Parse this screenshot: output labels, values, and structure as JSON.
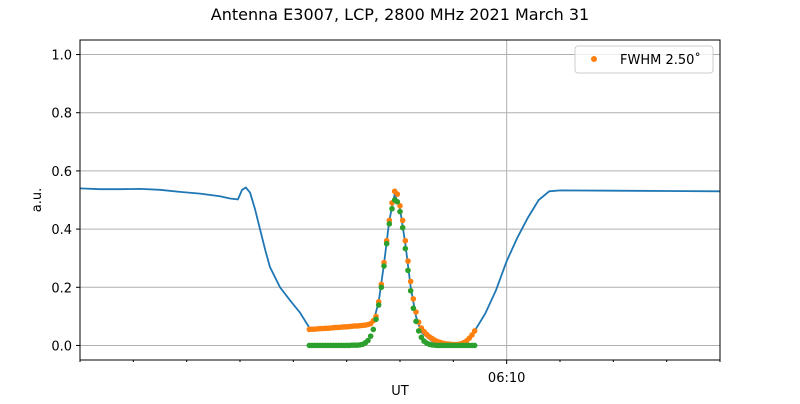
{
  "chart_data": {
    "type": "line",
    "title": "Antenna E3007, LCP, 2800 MHz 2021 March 31",
    "xlabel": "UT",
    "ylabel": "a.u.",
    "x_units": "minutes after 06:00",
    "xlim": [
      2,
      14
    ],
    "ylim": [
      -0.05,
      1.05
    ],
    "yticks": [
      "0.0",
      "0.2",
      "0.4",
      "0.6",
      "0.8",
      "1.0"
    ],
    "ytick_values": [
      0,
      0.2,
      0.4,
      0.6,
      0.8,
      1.0
    ],
    "xticks": [
      {
        "value": 10,
        "label": "06:10"
      }
    ],
    "xminor_ticks": [
      2,
      3,
      4,
      5,
      6,
      7,
      8,
      9,
      11,
      12,
      13,
      14
    ],
    "grid": true,
    "legend": {
      "placement": "top-right",
      "entries": [
        {
          "label": "FWHM 2.50$^\\circ$",
          "display": "FWHM 2.50˚",
          "series": "orange"
        }
      ]
    },
    "colors": {
      "blue": "#1f77b4",
      "orange": "#ff7f0e",
      "green": "#2ca02c"
    },
    "series": [
      {
        "name": "blue",
        "kind": "line",
        "x": [
          2.0,
          2.375,
          2.75,
          3.125,
          3.5,
          3.875,
          4.25,
          4.625,
          4.81,
          4.96,
          5.04,
          5.11,
          5.19,
          5.28,
          5.375,
          5.47,
          5.56,
          5.75,
          5.94,
          6.125,
          6.31,
          7.3,
          7.5,
          7.6,
          7.7,
          7.8,
          7.9,
          8.0,
          8.1,
          8.2,
          8.3,
          8.4,
          8.6,
          8.8,
          9.0,
          9.2,
          9.4,
          9.6,
          9.8,
          10.0,
          10.2,
          10.4,
          10.6,
          10.8,
          11.0,
          12.0,
          13.0,
          14.0
        ],
        "y": [
          0.54,
          0.537,
          0.537,
          0.538,
          0.535,
          0.528,
          0.522,
          0.513,
          0.505,
          0.502,
          0.535,
          0.543,
          0.525,
          0.47,
          0.4,
          0.33,
          0.27,
          0.2,
          0.155,
          0.113,
          0.058,
          0.07,
          0.08,
          0.15,
          0.28,
          0.43,
          0.52,
          0.47,
          0.35,
          0.2,
          0.1,
          0.045,
          0.015,
          0.005,
          0.0,
          0.005,
          0.05,
          0.11,
          0.19,
          0.29,
          0.37,
          0.44,
          0.5,
          0.53,
          0.533,
          0.532,
          0.531,
          0.53
        ]
      },
      {
        "name": "orange",
        "kind": "scatter",
        "x": [
          6.3,
          6.35,
          6.4,
          6.45,
          6.5,
          6.55,
          6.6,
          6.65,
          6.7,
          6.75,
          6.8,
          6.85,
          6.9,
          6.95,
          7.0,
          7.05,
          7.1,
          7.15,
          7.2,
          7.25,
          7.3,
          7.35,
          7.4,
          7.45,
          7.5,
          7.55,
          7.6,
          7.65,
          7.7,
          7.75,
          7.8,
          7.85,
          7.9,
          7.95,
          8.0,
          8.05,
          8.1,
          8.15,
          8.2,
          8.25,
          8.3,
          8.35,
          8.4,
          8.45,
          8.5,
          8.55,
          8.6,
          8.65,
          8.7,
          8.75,
          8.8,
          8.85,
          8.9,
          8.95,
          9.0,
          9.05,
          9.1,
          9.15,
          9.2,
          9.25,
          9.3,
          9.35,
          9.4
        ],
        "y": [
          0.055,
          0.056,
          0.056,
          0.057,
          0.058,
          0.058,
          0.059,
          0.059,
          0.06,
          0.061,
          0.062,
          0.062,
          0.063,
          0.064,
          0.064,
          0.065,
          0.066,
          0.067,
          0.067,
          0.068,
          0.069,
          0.07,
          0.072,
          0.075,
          0.085,
          0.1,
          0.15,
          0.21,
          0.285,
          0.36,
          0.43,
          0.49,
          0.53,
          0.52,
          0.48,
          0.43,
          0.36,
          0.29,
          0.22,
          0.16,
          0.115,
          0.08,
          0.06,
          0.048,
          0.038,
          0.03,
          0.024,
          0.018,
          0.014,
          0.011,
          0.008,
          0.006,
          0.005,
          0.004,
          0.003,
          0.003,
          0.004,
          0.006,
          0.01,
          0.016,
          0.025,
          0.036,
          0.05
        ]
      },
      {
        "name": "green",
        "kind": "scatter",
        "x": [
          6.3,
          6.35,
          6.4,
          6.45,
          6.5,
          6.55,
          6.6,
          6.65,
          6.7,
          6.75,
          6.8,
          6.85,
          6.9,
          6.95,
          7.0,
          7.05,
          7.1,
          7.15,
          7.2,
          7.25,
          7.3,
          7.35,
          7.4,
          7.45,
          7.5,
          7.55,
          7.6,
          7.65,
          7.7,
          7.75,
          7.8,
          7.85,
          7.9,
          7.95,
          8.0,
          8.05,
          8.1,
          8.15,
          8.2,
          8.25,
          8.3,
          8.35,
          8.4,
          8.45,
          8.5,
          8.55,
          8.6,
          8.65,
          8.7,
          8.75,
          8.8,
          8.85,
          8.9,
          8.95,
          9.0,
          9.05,
          9.1,
          9.15,
          9.2,
          9.25,
          9.3,
          9.35,
          9.4
        ],
        "y": [
          0,
          0,
          0,
          0,
          0,
          0,
          0,
          0,
          0,
          0,
          0,
          0,
          0,
          0,
          0,
          0,
          0.001,
          0.001,
          0.001,
          0.002,
          0.004,
          0.009,
          0.017,
          0.032,
          0.055,
          0.09,
          0.139,
          0.2,
          0.273,
          0.35,
          0.418,
          0.47,
          0.5,
          0.494,
          0.46,
          0.405,
          0.333,
          0.258,
          0.188,
          0.128,
          0.083,
          0.05,
          0.028,
          0.015,
          0.008,
          0.004,
          0.002,
          0.001,
          0,
          0,
          0,
          0,
          0,
          0,
          0,
          0,
          0,
          0,
          0,
          0,
          0,
          0,
          0
        ]
      }
    ]
  }
}
